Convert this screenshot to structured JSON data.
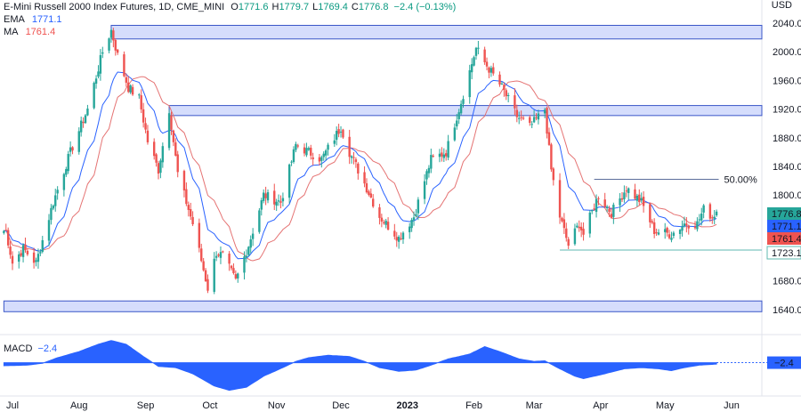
{
  "header": {
    "title": "E-Mini Russell 2000 Index Futures, 1D, CME_MINI",
    "ohlc": [
      {
        "label": "O",
        "value": "1771.6"
      },
      {
        "label": "H",
        "value": "1779.7"
      },
      {
        "label": "L",
        "value": "1769.4"
      },
      {
        "label": "C",
        "value": "1776.8"
      }
    ],
    "change": "−2.4 (−0.13%)",
    "currency": "USD"
  },
  "indicators": {
    "ema_label": "EMA",
    "ema_value": "1771.1",
    "ma_label": "MA",
    "ma_value": "1761.4",
    "macd_label": "MACD",
    "macd_value": "−2.4"
  },
  "colors": {
    "up": "#26a69a",
    "down": "#ef5350",
    "ema": "#2962ff",
    "ma": "#e57373",
    "zone_fill": "#c7d2fb",
    "zone_stroke": "#3a56c7",
    "fib": "#5b6e9b",
    "support": "#5fb9b2",
    "macd": "#2962ff",
    "price_badge": "#26a69a"
  },
  "chart_data": {
    "type": "candlestick",
    "ylim": [
      1610,
      2055
    ],
    "y_ticks": [
      "1640.0",
      "1680.0",
      "1720.0",
      "1760.0",
      "1800.0",
      "1840.0",
      "1880.0",
      "1920.0",
      "1960.0",
      "2000.0",
      "2040.0"
    ],
    "x_ticks": [
      "Jul",
      "Aug",
      "Sep",
      "Oct",
      "Nov",
      "Dec",
      "2023",
      "Feb",
      "Mar",
      "Apr",
      "May",
      "Jun"
    ],
    "anchors": [
      [
        "2022-06-28",
        1750
      ],
      [
        "2022-07-01",
        1705
      ],
      [
        "2022-07-06",
        1725
      ],
      [
        "2022-07-12",
        1705
      ],
      [
        "2022-07-20",
        1790
      ],
      [
        "2022-07-28",
        1860
      ],
      [
        "2022-08-05",
        1920
      ],
      [
        "2022-08-12",
        2000
      ],
      [
        "2022-08-16",
        2030
      ],
      [
        "2022-08-19",
        1995
      ],
      [
        "2022-08-24",
        1950
      ],
      [
        "2022-08-29",
        1935
      ],
      [
        "2022-09-02",
        1875
      ],
      [
        "2022-09-07",
        1835
      ],
      [
        "2022-09-12",
        1920
      ],
      [
        "2022-09-16",
        1830
      ],
      [
        "2022-09-23",
        1760
      ],
      [
        "2022-09-30",
        1670
      ],
      [
        "2022-10-04",
        1720
      ],
      [
        "2022-10-07",
        1715
      ],
      [
        "2022-10-13",
        1680
      ],
      [
        "2022-10-19",
        1730
      ],
      [
        "2022-10-26",
        1800
      ],
      [
        "2022-11-03",
        1790
      ],
      [
        "2022-11-10",
        1870
      ],
      [
        "2022-11-16",
        1860
      ],
      [
        "2022-11-22",
        1850
      ],
      [
        "2022-12-01",
        1895
      ],
      [
        "2022-12-05",
        1860
      ],
      [
        "2022-12-13",
        1810
      ],
      [
        "2022-12-19",
        1770
      ],
      [
        "2022-12-28",
        1740
      ],
      [
        "2023-01-04",
        1770
      ],
      [
        "2023-01-12",
        1850
      ],
      [
        "2023-01-19",
        1860
      ],
      [
        "2023-01-26",
        1930
      ],
      [
        "2023-02-02",
        2005
      ],
      [
        "2023-02-06",
        1985
      ],
      [
        "2023-02-14",
        1950
      ],
      [
        "2023-02-21",
        1910
      ],
      [
        "2023-02-27",
        1895
      ],
      [
        "2023-03-06",
        1920
      ],
      [
        "2023-03-09",
        1835
      ],
      [
        "2023-03-13",
        1770
      ],
      [
        "2023-03-17",
        1730
      ],
      [
        "2023-03-22",
        1760
      ],
      [
        "2023-03-24",
        1745
      ],
      [
        "2023-03-31",
        1800
      ],
      [
        "2023-04-06",
        1775
      ],
      [
        "2023-04-13",
        1810
      ],
      [
        "2023-04-20",
        1790
      ],
      [
        "2023-04-26",
        1750
      ],
      [
        "2023-05-04",
        1745
      ],
      [
        "2023-05-10",
        1760
      ],
      [
        "2023-05-16",
        1760
      ],
      [
        "2023-05-19",
        1780
      ],
      [
        "2023-05-23",
        1770
      ],
      [
        "2023-05-25",
        1777
      ]
    ],
    "last": {
      "open": 1771.6,
      "high": 1779.7,
      "low": 1769.4,
      "close": 1776.8
    },
    "zones": [
      {
        "from": 2018,
        "to": 2037,
        "start": "2022-08-16"
      },
      {
        "from": 1911,
        "to": 1925,
        "start": "2022-09-12"
      },
      {
        "from": 1637,
        "to": 1652,
        "start": "2022-06-27"
      }
    ],
    "fib_level": {
      "value": 1822,
      "label": "50.00%",
      "start": "2023-03-29",
      "end": "2023-05-26"
    },
    "support_level": {
      "value": 1723.1,
      "start": "2023-03-13",
      "end": "2023-06-07"
    },
    "price_labels": [
      {
        "value": "1776.8",
        "price": 1776.8,
        "color": "#26a69a"
      },
      {
        "value": "1771.1",
        "price": 1771.1,
        "color": "#2962ff"
      },
      {
        "value": "1761.4",
        "price": 1761.4,
        "color": "#ef5350"
      },
      {
        "value": "1723.1",
        "price": 1723.1,
        "color": "#5fb9b2",
        "outlined": true
      }
    ],
    "macd": {
      "value_label": "−2.4",
      "anchors": [
        [
          "2022-06-27",
          -5
        ],
        [
          "2022-07-08",
          -4
        ],
        [
          "2022-07-15",
          -1
        ],
        [
          "2022-07-22",
          8
        ],
        [
          "2022-08-01",
          18
        ],
        [
          "2022-08-10",
          30
        ],
        [
          "2022-08-16",
          36
        ],
        [
          "2022-08-23",
          30
        ],
        [
          "2022-08-31",
          10
        ],
        [
          "2022-09-07",
          -6
        ],
        [
          "2022-09-15",
          -8
        ],
        [
          "2022-09-23",
          -18
        ],
        [
          "2022-10-03",
          -38
        ],
        [
          "2022-10-10",
          -45
        ],
        [
          "2022-10-18",
          -40
        ],
        [
          "2022-10-26",
          -22
        ],
        [
          "2022-11-04",
          -8
        ],
        [
          "2022-11-10",
          2
        ],
        [
          "2022-11-16",
          8
        ],
        [
          "2022-11-25",
          12
        ],
        [
          "2022-12-05",
          10
        ],
        [
          "2022-12-12",
          2
        ],
        [
          "2022-12-19",
          -8
        ],
        [
          "2022-12-28",
          -14
        ],
        [
          "2023-01-05",
          -12
        ],
        [
          "2023-01-12",
          -4
        ],
        [
          "2023-01-20",
          6
        ],
        [
          "2023-01-30",
          14
        ],
        [
          "2023-02-06",
          26
        ],
        [
          "2023-02-13",
          18
        ],
        [
          "2023-02-22",
          6
        ],
        [
          "2023-03-01",
          2
        ],
        [
          "2023-03-06",
          3
        ],
        [
          "2023-03-13",
          -10
        ],
        [
          "2023-03-20",
          -22
        ],
        [
          "2023-03-24",
          -26
        ],
        [
          "2023-04-03",
          -18
        ],
        [
          "2023-04-12",
          -10
        ],
        [
          "2023-04-20",
          -8
        ],
        [
          "2023-04-28",
          -10
        ],
        [
          "2023-05-04",
          -13
        ],
        [
          "2023-05-10",
          -8
        ],
        [
          "2023-05-17",
          -4
        ],
        [
          "2023-05-25",
          -2.4
        ]
      ],
      "range": [
        -50,
        40
      ]
    }
  }
}
